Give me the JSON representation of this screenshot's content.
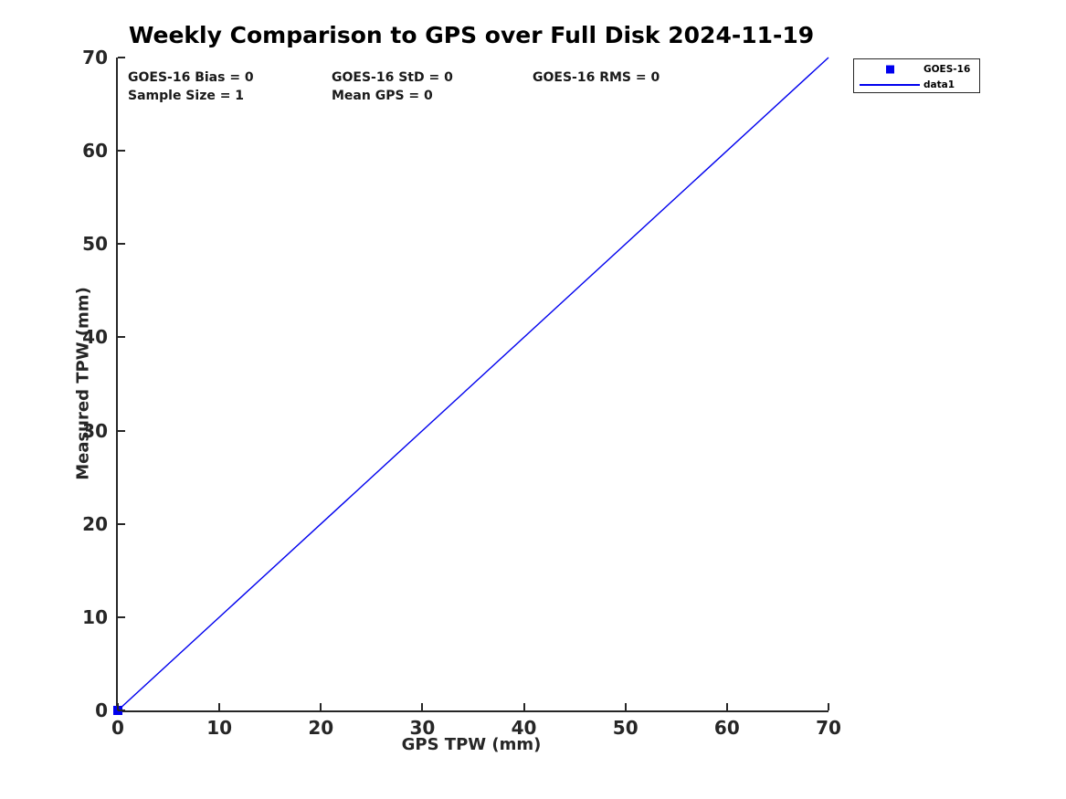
{
  "chart_data": {
    "type": "scatter",
    "title": "Weekly Comparison to GPS over Full Disk 2024-11-19",
    "xlabel": "GPS TPW (mm)",
    "ylabel": "Measured TPW (mm)",
    "xlim": [
      0,
      70
    ],
    "ylim": [
      0,
      70
    ],
    "xticks": [
      0,
      10,
      20,
      30,
      40,
      50,
      60,
      70
    ],
    "yticks": [
      0,
      10,
      20,
      30,
      40,
      50,
      60,
      70
    ],
    "grid": false,
    "legend_position": "outside-top-right",
    "series": [
      {
        "name": "GOES-16",
        "type": "scatter",
        "marker": "square",
        "color": "#0000EE",
        "x": [
          0
        ],
        "y": [
          0
        ]
      },
      {
        "name": "data1",
        "type": "line",
        "color": "#0000EE",
        "x": [
          0,
          70
        ],
        "y": [
          0,
          70
        ]
      }
    ],
    "annotations": [
      "GOES-16 Bias = 0",
      "GOES-16 StD = 0",
      "GOES-16 RMS = 0",
      "Sample Size = 1",
      "Mean GPS = 0"
    ]
  },
  "stats": {
    "bias": "GOES-16 Bias = 0",
    "std": "GOES-16 StD = 0",
    "rms": "GOES-16 RMS = 0",
    "sample_size": "Sample Size = 1",
    "mean_gps": "Mean GPS = 0"
  },
  "legend": {
    "items": [
      {
        "label": "GOES-16",
        "symbol": "square"
      },
      {
        "label": "data1",
        "symbol": "line"
      }
    ]
  },
  "colors": {
    "series": "#0000EE",
    "axis": "#262626",
    "text": "#1a1a1a",
    "background": "#ffffff"
  }
}
